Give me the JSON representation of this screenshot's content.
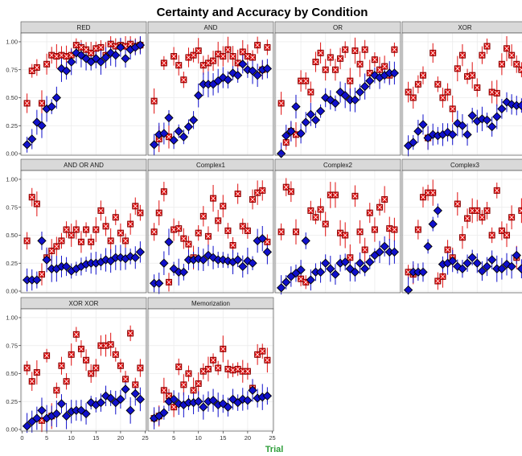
{
  "colors": {
    "accuracy": "#1010cc",
    "certainty": "#e01010",
    "strip_bg": "#d9d9d9",
    "panel_border": "#4d4d4d",
    "grid": "#ebebeb",
    "xlabel": "#2e9e3a"
  },
  "chart_data": {
    "type": "scatter",
    "title": "Certainty and Accuracy by Condition",
    "xlabel": "Trial",
    "ylabel": "",
    "xlim": [
      0,
      25
    ],
    "ylim": [
      0,
      1.05
    ],
    "x_ticks": [
      0,
      5,
      10,
      15,
      20,
      25
    ],
    "y_ticks": [
      "0.00",
      "0.25",
      "0.50",
      "0.75",
      "1.00"
    ],
    "x_tick_labels": [
      "0",
      "5",
      "10",
      "15",
      "20",
      "25"
    ],
    "legend": "none",
    "grid": true,
    "markers": {
      "accuracy": "diamond, blue, error bars",
      "certainty": "square with x, red, error bars"
    },
    "panels": [
      {
        "name": "RED",
        "series": [
          {
            "values": [
              0.08,
              0.13,
              0.28,
              0.25,
              0.4,
              0.42,
              0.5,
              0.76,
              0.74,
              0.82,
              0.9,
              0.88,
              0.85,
              0.82,
              0.85,
              0.82,
              0.86,
              0.9,
              0.88,
              0.95,
              0.85,
              0.93,
              0.95,
              0.97
            ]
          },
          {
            "values": [
              0.45,
              0.74,
              0.77,
              0.45,
              0.8,
              0.88,
              0.87,
              0.88,
              0.87,
              0.88,
              0.97,
              0.95,
              0.93,
              0.9,
              0.94,
              0.95,
              0.88,
              0.98,
              0.96,
              0.97,
              0.96,
              0.98,
              0.96,
              0.97
            ]
          }
        ]
      },
      {
        "name": "AND",
        "series": [
          {
            "values": [
              0.08,
              0.17,
              0.18,
              0.32,
              0.12,
              0.2,
              0.15,
              0.24,
              0.3,
              0.52,
              0.62,
              0.62,
              0.62,
              0.65,
              0.68,
              0.66,
              0.72,
              0.7,
              0.8,
              0.75,
              0.74,
              0.7,
              0.75,
              0.76
            ]
          },
          {
            "values": [
              0.47,
              0.13,
              0.81,
              0.15,
              0.87,
              0.79,
              0.66,
              0.86,
              0.88,
              0.92,
              0.79,
              0.81,
              0.83,
              0.89,
              0.87,
              0.93,
              0.87,
              0.81,
              0.91,
              0.87,
              0.86,
              0.97,
              0.75,
              0.95
            ]
          }
        ]
      },
      {
        "name": "OR",
        "series": [
          {
            "values": [
              0.0,
              0.16,
              0.2,
              0.42,
              0.18,
              0.28,
              0.35,
              0.3,
              0.38,
              0.5,
              0.48,
              0.45,
              0.55,
              0.52,
              0.48,
              0.48,
              0.55,
              0.6,
              0.65,
              0.7,
              0.68,
              0.7,
              0.72,
              0.72
            ]
          },
          {
            "values": [
              0.45,
              0.1,
              0.2,
              0.17,
              0.65,
              0.65,
              0.55,
              0.82,
              0.9,
              0.75,
              0.86,
              0.75,
              0.85,
              0.93,
              0.65,
              0.92,
              0.8,
              0.93,
              0.72,
              0.84,
              0.75,
              0.78,
              0.7,
              0.93
            ]
          }
        ]
      },
      {
        "name": "XOR",
        "series": [
          {
            "values": [
              0.07,
              0.1,
              0.2,
              0.26,
              0.14,
              0.17,
              0.16,
              0.17,
              0.19,
              0.17,
              0.27,
              0.25,
              0.17,
              0.34,
              0.29,
              0.31,
              0.3,
              0.24,
              0.33,
              0.4,
              0.46,
              0.44,
              0.43,
              0.43
            ]
          },
          {
            "values": [
              0.55,
              0.5,
              0.62,
              0.7,
              0.14,
              0.9,
              0.62,
              0.5,
              0.55,
              0.4,
              0.76,
              0.88,
              0.69,
              0.7,
              0.59,
              0.88,
              0.96,
              0.55,
              0.54,
              0.8,
              0.94,
              0.88,
              0.8,
              0.75
            ]
          }
        ]
      },
      {
        "name": "AND OR AND",
        "series": [
          {
            "values": [
              0.1,
              0.1,
              0.1,
              0.45,
              0.28,
              0.2,
              0.2,
              0.22,
              0.22,
              0.18,
              0.2,
              0.22,
              0.24,
              0.25,
              0.25,
              0.26,
              0.28,
              0.27,
              0.3,
              0.3,
              0.29,
              0.31,
              0.3,
              0.35
            ]
          },
          {
            "values": [
              0.45,
              0.84,
              0.78,
              0.15,
              0.3,
              0.36,
              0.4,
              0.45,
              0.55,
              0.5,
              0.55,
              0.44,
              0.55,
              0.44,
              0.55,
              0.72,
              0.58,
              0.45,
              0.66,
              0.52,
              0.45,
              0.6,
              0.76,
              0.7
            ]
          }
        ]
      },
      {
        "name": "Complex1",
        "series": [
          {
            "values": [
              0.07,
              0.07,
              0.25,
              0.44,
              0.2,
              0.17,
              0.17,
              0.28,
              0.28,
              0.29,
              0.28,
              0.32,
              0.3,
              0.28,
              0.28,
              0.27,
              0.26,
              0.28,
              0.22,
              0.27,
              0.25,
              0.45,
              0.47,
              0.35
            ]
          },
          {
            "values": [
              0.53,
              0.7,
              0.89,
              0.08,
              0.55,
              0.56,
              0.47,
              0.42,
              0.3,
              0.52,
              0.67,
              0.49,
              0.83,
              0.63,
              0.76,
              0.54,
              0.41,
              0.87,
              0.58,
              0.54,
              0.82,
              0.88,
              0.9,
              0.44
            ]
          }
        ]
      },
      {
        "name": "Complex2",
        "series": [
          {
            "values": [
              0.03,
              0.08,
              0.13,
              0.16,
              0.19,
              0.45,
              0.1,
              0.17,
              0.17,
              0.25,
              0.2,
              0.15,
              0.25,
              0.26,
              0.2,
              0.17,
              0.25,
              0.2,
              0.26,
              0.32,
              0.35,
              0.4,
              0.35,
              0.35
            ]
          },
          {
            "values": [
              0.53,
              0.93,
              0.89,
              0.53,
              0.11,
              0.08,
              0.72,
              0.66,
              0.73,
              0.6,
              0.86,
              0.86,
              0.52,
              0.5,
              0.3,
              0.85,
              0.53,
              0.37,
              0.7,
              0.55,
              0.75,
              0.82,
              0.56,
              0.55
            ]
          }
        ]
      },
      {
        "name": "Complex3",
        "series": [
          {
            "values": [
              0.01,
              0.17,
              0.17,
              0.17,
              0.4,
              0.6,
              0.72,
              0.24,
              0.25,
              0.27,
              0.22,
              0.2,
              0.25,
              0.3,
              0.25,
              0.18,
              0.22,
              0.28,
              0.2,
              0.2,
              0.24,
              0.22,
              0.32,
              0.2
            ]
          },
          {
            "values": [
              0.17,
              0.15,
              0.55,
              0.84,
              0.88,
              0.88,
              0.09,
              0.13,
              0.37,
              0.3,
              0.78,
              0.48,
              0.65,
              0.72,
              0.72,
              0.66,
              0.72,
              0.5,
              0.9,
              0.54,
              0.5,
              0.66,
              0.3,
              0.72
            ]
          }
        ]
      },
      {
        "name": "XOR XOR",
        "series": [
          {
            "values": [
              0.03,
              0.07,
              0.1,
              0.17,
              0.1,
              0.12,
              0.14,
              0.23,
              0.12,
              0.16,
              0.17,
              0.17,
              0.14,
              0.24,
              0.22,
              0.24,
              0.3,
              0.28,
              0.24,
              0.27,
              0.36,
              0.17,
              0.32,
              0.27
            ]
          },
          {
            "values": [
              0.55,
              0.43,
              0.51,
              0.08,
              0.66,
              0.12,
              0.35,
              0.57,
              0.43,
              0.67,
              0.85,
              0.72,
              0.62,
              0.5,
              0.55,
              0.75,
              0.75,
              0.76,
              0.67,
              0.57,
              0.45,
              0.86,
              0.4,
              0.55
            ]
          }
        ]
      },
      {
        "name": "Memorization",
        "series": [
          {
            "values": [
              0.1,
              0.12,
              0.15,
              0.25,
              0.27,
              0.23,
              0.22,
              0.24,
              0.24,
              0.25,
              0.2,
              0.25,
              0.26,
              0.22,
              0.23,
              0.2,
              0.27,
              0.24,
              0.27,
              0.26,
              0.35,
              0.28,
              0.29,
              0.3
            ]
          },
          {
            "values": [
              0.1,
              0.12,
              0.35,
              0.3,
              0.2,
              0.56,
              0.4,
              0.5,
              0.35,
              0.41,
              0.52,
              0.54,
              0.62,
              0.55,
              0.72,
              0.54,
              0.53,
              0.54,
              0.52,
              0.52,
              0.37,
              0.67,
              0.7,
              0.62
            ]
          }
        ]
      }
    ]
  }
}
